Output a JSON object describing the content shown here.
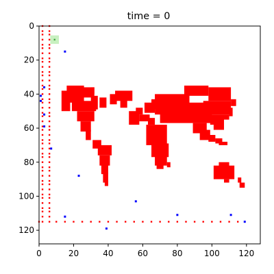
{
  "chart_data": {
    "type": "heatmap",
    "title": "time = 0",
    "xlabel": "",
    "ylabel": "",
    "xlim": [
      0,
      128
    ],
    "ylim": [
      128,
      0
    ],
    "y_inverted": true,
    "xticks": [
      0,
      20,
      40,
      60,
      80,
      100,
      120
    ],
    "yticks": [
      0,
      20,
      40,
      60,
      80,
      100,
      120
    ],
    "grid": false,
    "colors": {
      "land": "#ff0000",
      "agent": "#0000ff",
      "highlight": "#c8f0c0",
      "background": "#ffffff"
    },
    "land_rects": [
      [
        13,
        38,
        5,
        12
      ],
      [
        16,
        35,
        10,
        10
      ],
      [
        24,
        36,
        8,
        6
      ],
      [
        19,
        44,
        14,
        6
      ],
      [
        22,
        50,
        10,
        6
      ],
      [
        24,
        56,
        6,
        6
      ],
      [
        27,
        61,
        3,
        6
      ],
      [
        30,
        41,
        4,
        8
      ],
      [
        30,
        36,
        2,
        4
      ],
      [
        35,
        42,
        4,
        6
      ],
      [
        41,
        40,
        4,
        6
      ],
      [
        44,
        38,
        10,
        6
      ],
      [
        47,
        43,
        4,
        5
      ],
      [
        31,
        67,
        5,
        5
      ],
      [
        34,
        70,
        8,
        6
      ],
      [
        35,
        76,
        6,
        6
      ],
      [
        36,
        81,
        4,
        6
      ],
      [
        37,
        86,
        3,
        6
      ],
      [
        38,
        91,
        2,
        3
      ],
      [
        52,
        50,
        6,
        8
      ],
      [
        56,
        48,
        4,
        4
      ],
      [
        58,
        52,
        6,
        4
      ],
      [
        61,
        45,
        6,
        6
      ],
      [
        65,
        43,
        6,
        6
      ],
      [
        63,
        54,
        4,
        4
      ],
      [
        62,
        58,
        12,
        12
      ],
      [
        65,
        69,
        10,
        8
      ],
      [
        67,
        76,
        7,
        6
      ],
      [
        68,
        80,
        4,
        4
      ],
      [
        74,
        80,
        2,
        3
      ],
      [
        67,
        40,
        20,
        12
      ],
      [
        70,
        45,
        30,
        12
      ],
      [
        84,
        35,
        14,
        6
      ],
      [
        98,
        36,
        13,
        8
      ],
      [
        95,
        44,
        16,
        8
      ],
      [
        99,
        52,
        8,
        6
      ],
      [
        89,
        57,
        8,
        6
      ],
      [
        93,
        61,
        6,
        6
      ],
      [
        101,
        57,
        6,
        4
      ],
      [
        103,
        46,
        4,
        4
      ],
      [
        98,
        64,
        4,
        4
      ],
      [
        102,
        66,
        4,
        3
      ],
      [
        104,
        68,
        5,
        2
      ],
      [
        111,
        43,
        3,
        4
      ],
      [
        110,
        48,
        2,
        5
      ],
      [
        107,
        52,
        3,
        3
      ],
      [
        101,
        82,
        12,
        8
      ],
      [
        104,
        80,
        6,
        4
      ],
      [
        107,
        90,
        3,
        2
      ],
      [
        115,
        89,
        2,
        3
      ],
      [
        116,
        92,
        3,
        3
      ]
    ],
    "dots": [
      [
        2,
        0
      ],
      [
        6,
        0
      ],
      [
        2,
        3
      ],
      [
        6,
        3
      ],
      [
        2,
        5
      ],
      [
        6,
        5
      ],
      [
        2,
        8
      ],
      [
        6,
        8
      ],
      [
        2,
        11
      ],
      [
        6,
        11
      ],
      [
        2,
        13
      ],
      [
        6,
        13
      ],
      [
        2,
        16
      ],
      [
        6,
        16
      ],
      [
        2,
        19
      ],
      [
        6,
        19
      ],
      [
        2,
        21
      ],
      [
        6,
        21
      ],
      [
        2,
        24
      ],
      [
        6,
        24
      ],
      [
        2,
        27
      ],
      [
        6,
        27
      ],
      [
        2,
        29
      ],
      [
        6,
        29
      ],
      [
        2,
        32
      ],
      [
        6,
        32
      ],
      [
        2,
        35
      ],
      [
        6,
        35
      ],
      [
        2,
        37
      ],
      [
        6,
        37
      ],
      [
        2,
        40
      ],
      [
        6,
        40
      ],
      [
        2,
        43
      ],
      [
        6,
        43
      ],
      [
        2,
        45
      ],
      [
        6,
        45
      ],
      [
        2,
        48
      ],
      [
        6,
        48
      ],
      [
        2,
        51
      ],
      [
        6,
        51
      ],
      [
        2,
        53
      ],
      [
        6,
        53
      ],
      [
        2,
        56
      ],
      [
        6,
        56
      ],
      [
        2,
        59
      ],
      [
        6,
        59
      ],
      [
        2,
        61
      ],
      [
        6,
        61
      ],
      [
        2,
        64
      ],
      [
        6,
        64
      ],
      [
        2,
        67
      ],
      [
        6,
        67
      ],
      [
        2,
        69
      ],
      [
        6,
        69
      ],
      [
        2,
        72
      ],
      [
        6,
        72
      ],
      [
        2,
        75
      ],
      [
        6,
        75
      ],
      [
        2,
        77
      ],
      [
        6,
        77
      ],
      [
        2,
        80
      ],
      [
        6,
        80
      ],
      [
        2,
        83
      ],
      [
        6,
        83
      ],
      [
        2,
        85
      ],
      [
        6,
        85
      ],
      [
        2,
        88
      ],
      [
        6,
        88
      ],
      [
        2,
        91
      ],
      [
        6,
        91
      ],
      [
        2,
        93
      ],
      [
        6,
        93
      ],
      [
        2,
        96
      ],
      [
        6,
        96
      ],
      [
        2,
        99
      ],
      [
        6,
        99
      ],
      [
        2,
        101
      ],
      [
        6,
        101
      ],
      [
        2,
        104
      ],
      [
        6,
        104
      ],
      [
        2,
        107
      ],
      [
        6,
        107
      ],
      [
        2,
        109
      ],
      [
        6,
        109
      ],
      [
        2,
        112
      ],
      [
        6,
        112
      ],
      [
        2,
        115
      ],
      [
        6,
        115
      ],
      [
        0,
        115
      ],
      [
        10,
        115
      ],
      [
        15,
        115
      ],
      [
        20,
        115
      ],
      [
        25,
        115
      ],
      [
        30,
        115
      ],
      [
        35,
        115
      ],
      [
        40,
        115
      ],
      [
        45,
        115
      ],
      [
        50,
        115
      ],
      [
        55,
        115
      ],
      [
        60,
        115
      ],
      [
        65,
        115
      ],
      [
        70,
        115
      ],
      [
        75,
        115
      ],
      [
        80,
        115
      ],
      [
        85,
        115
      ],
      [
        90,
        115
      ],
      [
        95,
        115
      ],
      [
        100,
        115
      ],
      [
        105,
        115
      ],
      [
        110,
        115
      ],
      [
        115,
        115
      ]
    ],
    "agents": [
      [
        15,
        15
      ],
      [
        3,
        36
      ],
      [
        1,
        41
      ],
      [
        1,
        44
      ],
      [
        3,
        52
      ],
      [
        3,
        59
      ],
      [
        7,
        72
      ],
      [
        23,
        88
      ],
      [
        15,
        112
      ],
      [
        56,
        103
      ],
      [
        80,
        111
      ],
      [
        39,
        119
      ],
      [
        111,
        111
      ],
      [
        119,
        115
      ]
    ],
    "highlight_cell": [
      9,
      8
    ]
  }
}
